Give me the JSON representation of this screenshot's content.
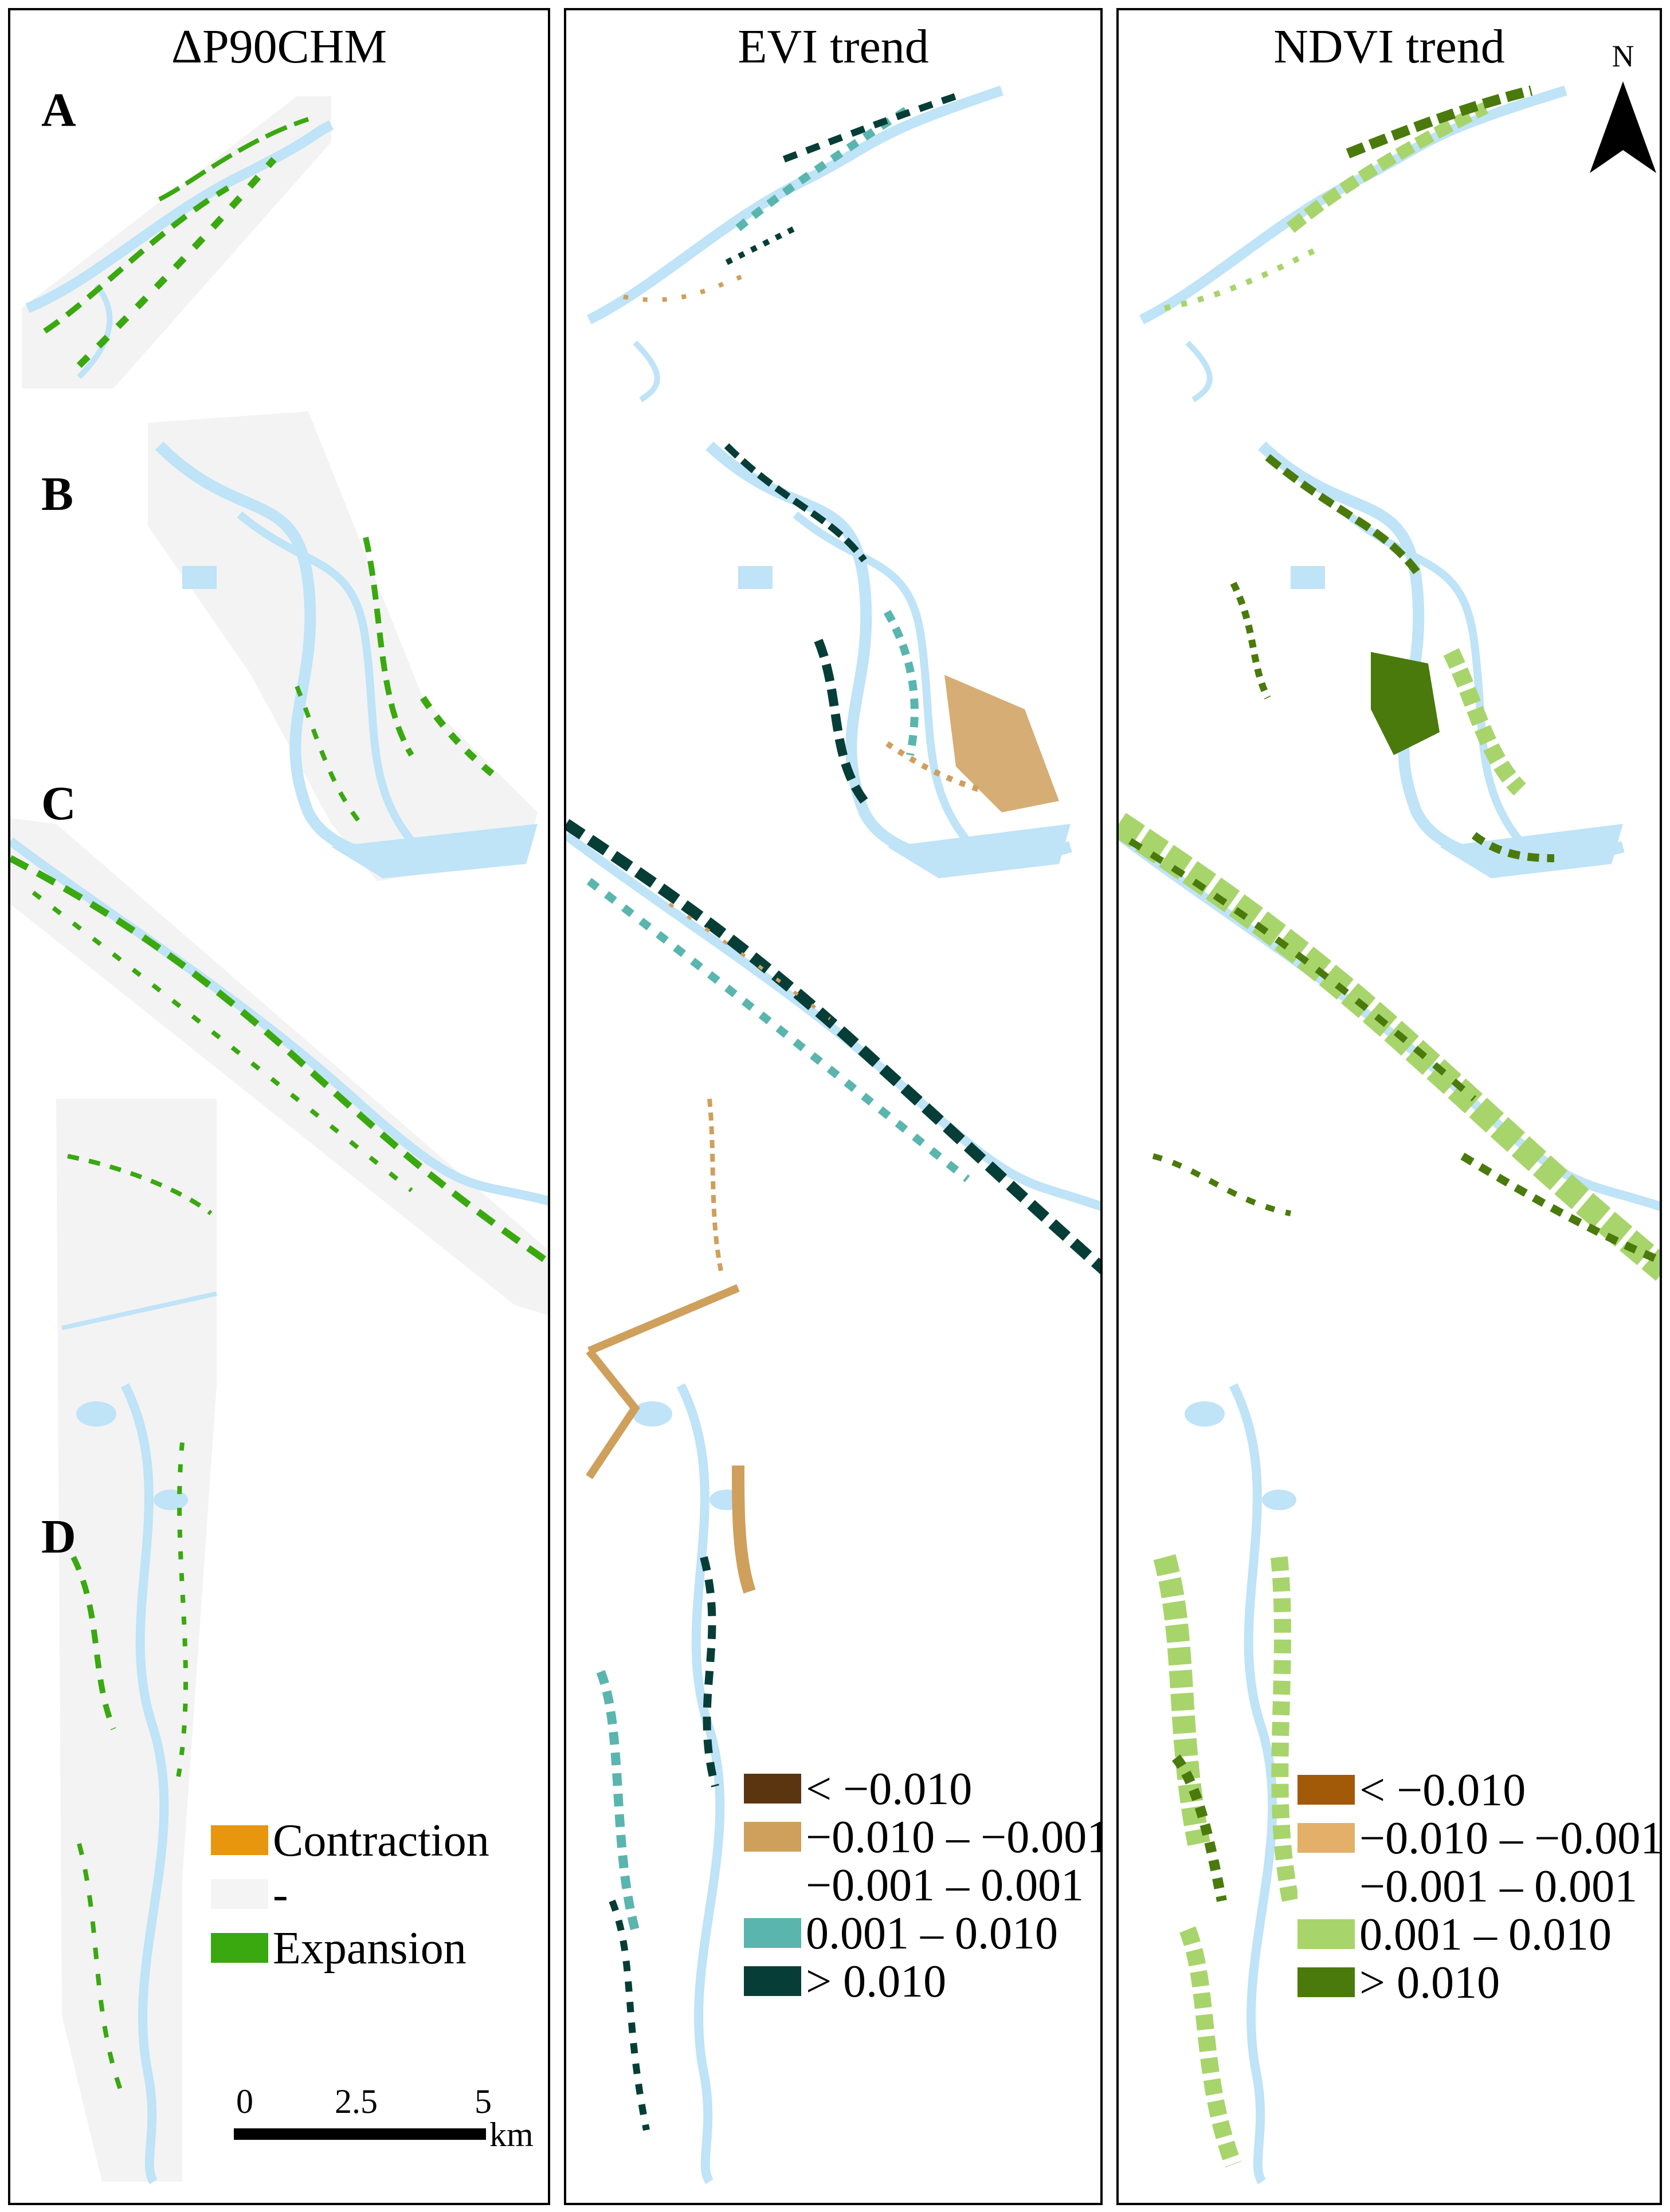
{
  "panels": [
    {
      "title": "ΔP90CHM"
    },
    {
      "title": "EVI trend"
    },
    {
      "title": "NDVI trend"
    }
  ],
  "row_labels": [
    "A",
    "B",
    "C",
    "D"
  ],
  "north_label": "N",
  "legend_chm": {
    "items": [
      {
        "label": "Contraction",
        "color": "#e8960e"
      },
      {
        "label": "-",
        "color": "#f4f4f4"
      },
      {
        "label": "Expansion",
        "color": "#3aa80f"
      }
    ]
  },
  "legend_evi": {
    "items": [
      {
        "label": "< −0.010",
        "color": "#5a3510"
      },
      {
        "label": "−0.010 – −0.001",
        "color": "#cf9f5c"
      },
      {
        "label": "−0.001 – 0.001",
        "color": "#ffffff"
      },
      {
        "label": "0.001 – 0.010",
        "color": "#5ab5ae"
      },
      {
        "label": ">  0.010",
        "color": "#063e37"
      }
    ]
  },
  "legend_ndvi": {
    "items": [
      {
        "label": "< −0.010",
        "color": "#a35a08"
      },
      {
        "label": "−0.010 – −0.001",
        "color": "#e3b06a"
      },
      {
        "label": "−0.001 – 0.001",
        "color": "#ffffff"
      },
      {
        "label": "0.001 – 0.010",
        "color": "#a8d46c"
      },
      {
        "label": ">  0.010",
        "color": "#4a7a0c"
      }
    ]
  },
  "scale": {
    "ticks": [
      "0",
      "2.5",
      "5"
    ],
    "unit": "km"
  },
  "colors": {
    "water": "#bfe3f7",
    "background": "#f3f3f3"
  }
}
